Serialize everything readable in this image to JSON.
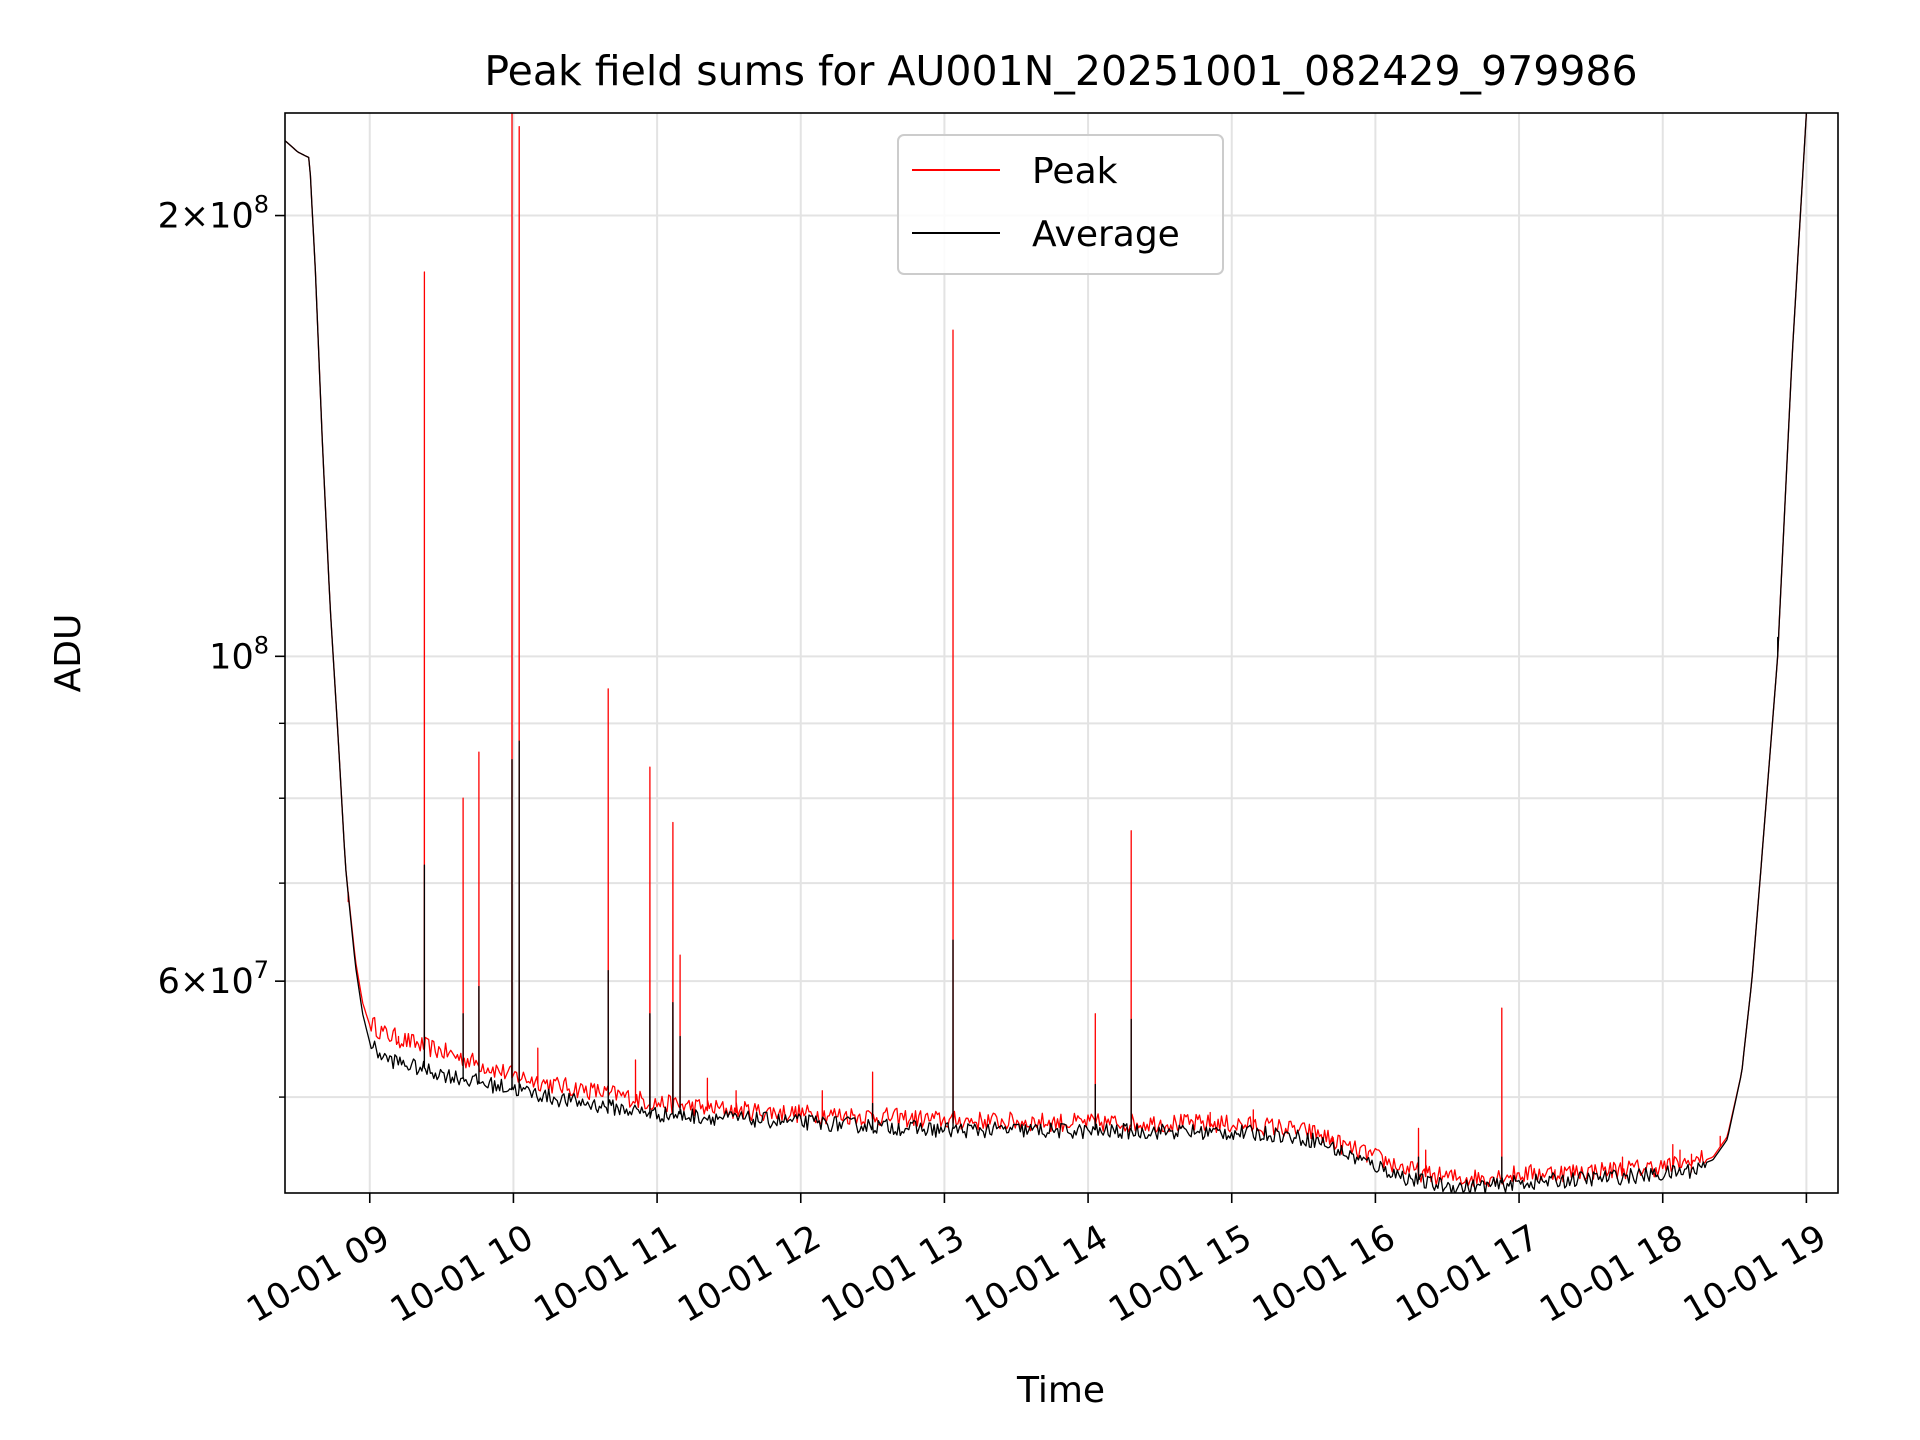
{
  "chart_data": {
    "type": "line",
    "title": "Peak field sums for AU001N_20251001_082429_979986",
    "xlabel": "Time",
    "ylabel": "ADU",
    "yscale": "log",
    "xlim": [
      8.41,
      19.22
    ],
    "ylim": [
      43000000,
      235000000
    ],
    "grid": true,
    "legend": {
      "position": "top-center",
      "entries": [
        "Peak",
        "Average"
      ]
    },
    "x_ticks": [
      {
        "value": 9,
        "label": "10-01 09"
      },
      {
        "value": 10,
        "label": "10-01 10"
      },
      {
        "value": 11,
        "label": "10-01 11"
      },
      {
        "value": 12,
        "label": "10-01 12"
      },
      {
        "value": 13,
        "label": "10-01 13"
      },
      {
        "value": 14,
        "label": "10-01 14"
      },
      {
        "value": 15,
        "label": "10-01 15"
      },
      {
        "value": 16,
        "label": "10-01 16"
      },
      {
        "value": 17,
        "label": "10-01 17"
      },
      {
        "value": 18,
        "label": "10-01 18"
      },
      {
        "value": 19,
        "label": "10-01 19"
      }
    ],
    "y_major_ticks": [
      {
        "value": 200000000,
        "mant": "2×10",
        "exp": "8"
      },
      {
        "value": 100000000,
        "mant": "10",
        "exp": "8"
      },
      {
        "value": 60000000,
        "mant": "6×10",
        "exp": "7"
      }
    ],
    "y_minor_ticks": [
      50000000,
      70000000,
      80000000,
      90000000
    ],
    "series": [
      {
        "name": "Peak",
        "color": "#ff0000",
        "baseline": {
          "x": [
            8.41,
            8.5,
            8.58,
            8.62,
            8.67,
            8.72,
            8.78,
            8.83,
            8.9,
            8.95,
            9.0,
            9.1,
            9.3,
            9.5,
            9.8,
            10.0,
            10.3,
            10.7,
            11.0,
            11.5,
            12.0,
            12.5,
            13.0,
            13.5,
            14.0,
            14.5,
            15.0,
            15.3,
            15.6,
            15.8,
            16.0,
            16.2,
            16.4,
            16.6,
            16.8,
            17.0,
            17.5,
            18.0,
            18.2,
            18.35,
            18.45,
            18.55,
            18.62,
            18.7,
            18.8,
            18.9,
            19.0
          ],
          "y": [
            225000000,
            221000000,
            219000000,
            185000000,
            140000000,
            110000000,
            88000000,
            72000000,
            62000000,
            58000000,
            56000000,
            55000000,
            54200000,
            53500000,
            52300000,
            51500000,
            50700000,
            50000000,
            49300000,
            48800000,
            48500000,
            48300000,
            48000000,
            47900000,
            47800000,
            47800000,
            47700000,
            47500000,
            47000000,
            46000000,
            45300000,
            44500000,
            44000000,
            43800000,
            43900000,
            44100000,
            44300000,
            44600000,
            44900000,
            45500000,
            47000000,
            52000000,
            60000000,
            75000000,
            100000000,
            160000000,
            235000000
          ]
        },
        "spikes": [
          {
            "x": 8.85,
            "y": 68000000
          },
          {
            "x": 9.2,
            "y": 55000000
          },
          {
            "x": 9.38,
            "y": 183000000
          },
          {
            "x": 9.65,
            "y": 80000000
          },
          {
            "x": 9.76,
            "y": 86000000
          },
          {
            "x": 9.99,
            "y": 238000000
          },
          {
            "x": 10.04,
            "y": 230000000
          },
          {
            "x": 10.17,
            "y": 54000000
          },
          {
            "x": 10.66,
            "y": 95000000
          },
          {
            "x": 10.85,
            "y": 53000000
          },
          {
            "x": 10.95,
            "y": 84000000
          },
          {
            "x": 11.11,
            "y": 77000000
          },
          {
            "x": 11.16,
            "y": 62500000
          },
          {
            "x": 11.35,
            "y": 51500000
          },
          {
            "x": 11.55,
            "y": 50500000
          },
          {
            "x": 12.15,
            "y": 50500000
          },
          {
            "x": 12.5,
            "y": 52000000
          },
          {
            "x": 13.06,
            "y": 167000000
          },
          {
            "x": 14.05,
            "y": 57000000
          },
          {
            "x": 14.3,
            "y": 76000000
          },
          {
            "x": 14.85,
            "y": 48800000
          },
          {
            "x": 15.15,
            "y": 49000000
          },
          {
            "x": 15.7,
            "y": 47000000
          },
          {
            "x": 16.3,
            "y": 47600000
          },
          {
            "x": 16.35,
            "y": 46000000
          },
          {
            "x": 16.88,
            "y": 57500000
          },
          {
            "x": 17.25,
            "y": 44600000
          },
          {
            "x": 17.72,
            "y": 45500000
          },
          {
            "x": 18.07,
            "y": 46400000
          },
          {
            "x": 18.12,
            "y": 46000000
          },
          {
            "x": 18.2,
            "y": 45700000
          },
          {
            "x": 18.4,
            "y": 47000000
          }
        ]
      },
      {
        "name": "Average",
        "color": "#000000",
        "baseline": {
          "x": [
            8.41,
            8.5,
            8.58,
            8.62,
            8.67,
            8.72,
            8.78,
            8.83,
            8.9,
            8.95,
            9.0,
            9.1,
            9.3,
            9.5,
            9.8,
            10.0,
            10.3,
            10.7,
            11.0,
            11.5,
            12.0,
            12.5,
            13.0,
            13.5,
            14.0,
            14.5,
            15.0,
            15.3,
            15.6,
            15.8,
            16.0,
            16.2,
            16.4,
            16.6,
            16.8,
            17.0,
            17.5,
            18.0,
            18.2,
            18.35,
            18.45,
            18.55,
            18.62,
            18.7,
            18.8,
            18.9,
            19.0
          ],
          "y": [
            225000000,
            221000000,
            219000000,
            185000000,
            140000000,
            110000000,
            88000000,
            72000000,
            61500000,
            57000000,
            54500000,
            53300000,
            52600000,
            52000000,
            51200000,
            50800000,
            50000000,
            49300000,
            48800000,
            48500000,
            48200000,
            47900000,
            47600000,
            47600000,
            47500000,
            47500000,
            47400000,
            47300000,
            46800000,
            45800000,
            45000000,
            44200000,
            43700000,
            43500000,
            43600000,
            43800000,
            44100000,
            44400000,
            44700000,
            45300000,
            46800000,
            52000000,
            60000000,
            75000000,
            100000000,
            160000000,
            235000000
          ]
        },
        "spikes": [
          {
            "x": 9.38,
            "y": 72000000
          },
          {
            "x": 9.65,
            "y": 57000000
          },
          {
            "x": 9.76,
            "y": 59500000
          },
          {
            "x": 9.99,
            "y": 85000000
          },
          {
            "x": 10.04,
            "y": 87500000
          },
          {
            "x": 10.66,
            "y": 61000000
          },
          {
            "x": 10.95,
            "y": 57000000
          },
          {
            "x": 11.11,
            "y": 58000000
          },
          {
            "x": 11.16,
            "y": 55000000
          },
          {
            "x": 12.5,
            "y": 49500000
          },
          {
            "x": 13.06,
            "y": 64000000
          },
          {
            "x": 14.05,
            "y": 51000000
          },
          {
            "x": 14.3,
            "y": 56500000
          },
          {
            "x": 16.3,
            "y": 45500000
          },
          {
            "x": 16.88,
            "y": 45500000
          },
          {
            "x": 18.8,
            "y": 103000000
          }
        ]
      }
    ]
  }
}
